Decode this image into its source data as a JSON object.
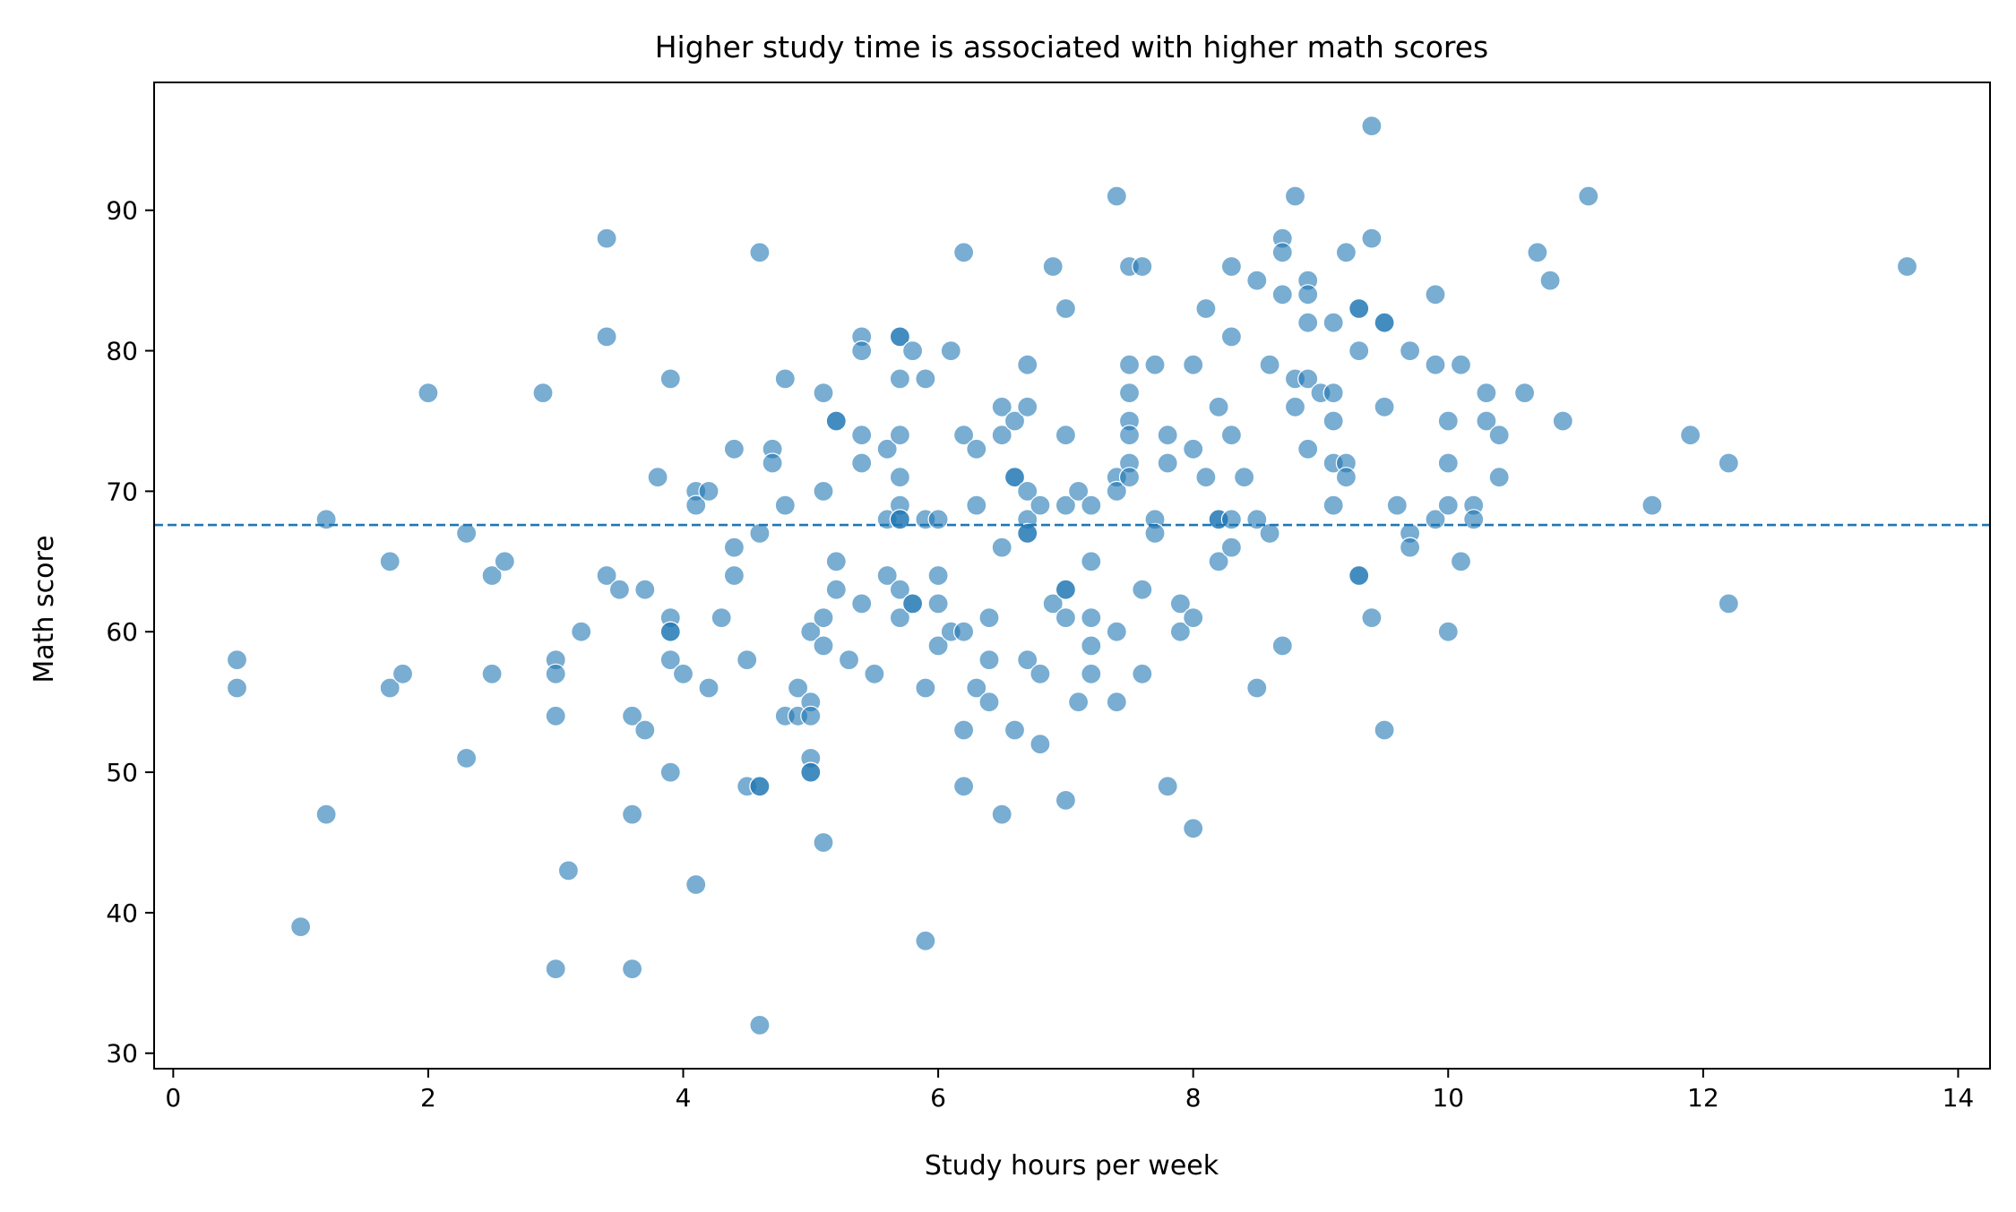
{
  "chart_data": {
    "type": "scatter",
    "title": "Higher study time is associated with higher math scores",
    "xlabel": "Study hours per week",
    "ylabel": "Math score",
    "xlim": [
      -0.15,
      14.25
    ],
    "ylim": [
      28.9,
      99.1
    ],
    "xticks": [
      0,
      2,
      4,
      6,
      8,
      10,
      12,
      14
    ],
    "yticks": [
      30,
      40,
      50,
      60,
      70,
      80,
      90
    ],
    "grid": false,
    "legend": "none",
    "reference_line": {
      "orientation": "horizontal",
      "y": 67.6,
      "style": "dashed"
    },
    "colors": {
      "point": "#1f77b4",
      "line": "#1f77b4"
    },
    "points": [
      [
        0.5,
        58
      ],
      [
        0.5,
        56
      ],
      [
        1.0,
        39
      ],
      [
        1.2,
        68
      ],
      [
        1.2,
        47
      ],
      [
        1.7,
        65
      ],
      [
        1.7,
        56
      ],
      [
        1.8,
        57
      ],
      [
        2.0,
        77
      ],
      [
        2.3,
        67
      ],
      [
        2.3,
        51
      ],
      [
        2.5,
        64
      ],
      [
        2.5,
        57
      ],
      [
        2.6,
        65
      ],
      [
        2.9,
        77
      ],
      [
        3.0,
        58
      ],
      [
        3.0,
        57
      ],
      [
        3.0,
        54
      ],
      [
        3.0,
        36
      ],
      [
        3.1,
        43
      ],
      [
        3.2,
        60
      ],
      [
        3.4,
        88
      ],
      [
        3.4,
        81
      ],
      [
        3.4,
        64
      ],
      [
        3.5,
        63
      ],
      [
        3.6,
        54
      ],
      [
        3.6,
        47
      ],
      [
        3.6,
        36
      ],
      [
        3.7,
        63
      ],
      [
        3.7,
        53
      ],
      [
        3.8,
        71
      ],
      [
        3.9,
        78
      ],
      [
        3.9,
        61
      ],
      [
        3.9,
        60
      ],
      [
        3.9,
        60
      ],
      [
        3.9,
        58
      ],
      [
        3.9,
        50
      ],
      [
        4.0,
        57
      ],
      [
        4.1,
        70
      ],
      [
        4.1,
        69
      ],
      [
        4.1,
        42
      ],
      [
        4.2,
        70
      ],
      [
        4.2,
        56
      ],
      [
        4.3,
        61
      ],
      [
        4.4,
        73
      ],
      [
        4.4,
        66
      ],
      [
        4.4,
        64
      ],
      [
        4.5,
        58
      ],
      [
        4.5,
        49
      ],
      [
        4.6,
        87
      ],
      [
        4.6,
        67
      ],
      [
        4.6,
        49
      ],
      [
        4.6,
        49
      ],
      [
        4.6,
        32
      ],
      [
        4.7,
        73
      ],
      [
        4.7,
        72
      ],
      [
        4.8,
        78
      ],
      [
        4.8,
        69
      ],
      [
        4.8,
        54
      ],
      [
        4.9,
        56
      ],
      [
        4.9,
        54
      ],
      [
        5.0,
        60
      ],
      [
        5.0,
        55
      ],
      [
        5.0,
        54
      ],
      [
        5.0,
        51
      ],
      [
        5.0,
        50
      ],
      [
        5.0,
        50
      ],
      [
        5.1,
        77
      ],
      [
        5.1,
        70
      ],
      [
        5.1,
        61
      ],
      [
        5.1,
        59
      ],
      [
        5.1,
        45
      ],
      [
        5.2,
        75
      ],
      [
        5.2,
        75
      ],
      [
        5.2,
        65
      ],
      [
        5.2,
        63
      ],
      [
        5.3,
        58
      ],
      [
        5.4,
        81
      ],
      [
        5.4,
        80
      ],
      [
        5.4,
        74
      ],
      [
        5.4,
        72
      ],
      [
        5.4,
        62
      ],
      [
        5.5,
        57
      ],
      [
        5.6,
        73
      ],
      [
        5.6,
        68
      ],
      [
        5.6,
        64
      ],
      [
        5.7,
        81
      ],
      [
        5.7,
        81
      ],
      [
        5.7,
        78
      ],
      [
        5.7,
        74
      ],
      [
        5.7,
        71
      ],
      [
        5.7,
        69
      ],
      [
        5.7,
        68
      ],
      [
        5.7,
        68
      ],
      [
        5.7,
        63
      ],
      [
        5.7,
        61
      ],
      [
        5.8,
        80
      ],
      [
        5.8,
        62
      ],
      [
        5.8,
        62
      ],
      [
        5.9,
        78
      ],
      [
        5.9,
        68
      ],
      [
        5.9,
        56
      ],
      [
        5.9,
        38
      ],
      [
        6.0,
        68
      ],
      [
        6.0,
        64
      ],
      [
        6.0,
        62
      ],
      [
        6.0,
        59
      ],
      [
        6.1,
        80
      ],
      [
        6.1,
        60
      ],
      [
        6.2,
        87
      ],
      [
        6.2,
        74
      ],
      [
        6.2,
        60
      ],
      [
        6.2,
        53
      ],
      [
        6.2,
        49
      ],
      [
        6.3,
        73
      ],
      [
        6.3,
        69
      ],
      [
        6.3,
        56
      ],
      [
        6.4,
        61
      ],
      [
        6.4,
        58
      ],
      [
        6.4,
        55
      ],
      [
        6.5,
        76
      ],
      [
        6.5,
        74
      ],
      [
        6.5,
        66
      ],
      [
        6.5,
        47
      ],
      [
        6.6,
        75
      ],
      [
        6.6,
        71
      ],
      [
        6.6,
        71
      ],
      [
        6.6,
        53
      ],
      [
        6.7,
        79
      ],
      [
        6.7,
        76
      ],
      [
        6.7,
        70
      ],
      [
        6.7,
        68
      ],
      [
        6.7,
        67
      ],
      [
        6.7,
        67
      ],
      [
        6.7,
        58
      ],
      [
        6.8,
        69
      ],
      [
        6.8,
        57
      ],
      [
        6.8,
        52
      ],
      [
        6.9,
        86
      ],
      [
        6.9,
        62
      ],
      [
        7.0,
        83
      ],
      [
        7.0,
        74
      ],
      [
        7.0,
        69
      ],
      [
        7.0,
        63
      ],
      [
        7.0,
        63
      ],
      [
        7.0,
        61
      ],
      [
        7.0,
        48
      ],
      [
        7.1,
        70
      ],
      [
        7.1,
        55
      ],
      [
        7.2,
        69
      ],
      [
        7.2,
        65
      ],
      [
        7.2,
        61
      ],
      [
        7.2,
        59
      ],
      [
        7.2,
        57
      ],
      [
        7.4,
        91
      ],
      [
        7.4,
        71
      ],
      [
        7.4,
        70
      ],
      [
        7.4,
        60
      ],
      [
        7.4,
        55
      ],
      [
        7.5,
        86
      ],
      [
        7.5,
        79
      ],
      [
        7.5,
        77
      ],
      [
        7.5,
        75
      ],
      [
        7.5,
        74
      ],
      [
        7.5,
        72
      ],
      [
        7.5,
        71
      ],
      [
        7.6,
        86
      ],
      [
        7.6,
        63
      ],
      [
        7.6,
        57
      ],
      [
        7.7,
        79
      ],
      [
        7.7,
        68
      ],
      [
        7.7,
        67
      ],
      [
        7.8,
        74
      ],
      [
        7.8,
        72
      ],
      [
        7.8,
        49
      ],
      [
        7.9,
        62
      ],
      [
        7.9,
        60
      ],
      [
        8.0,
        79
      ],
      [
        8.0,
        73
      ],
      [
        8.0,
        61
      ],
      [
        8.0,
        46
      ],
      [
        8.1,
        83
      ],
      [
        8.1,
        71
      ],
      [
        8.2,
        76
      ],
      [
        8.2,
        68
      ],
      [
        8.2,
        68
      ],
      [
        8.2,
        65
      ],
      [
        8.3,
        86
      ],
      [
        8.3,
        81
      ],
      [
        8.3,
        74
      ],
      [
        8.3,
        68
      ],
      [
        8.3,
        66
      ],
      [
        8.4,
        71
      ],
      [
        8.5,
        85
      ],
      [
        8.5,
        68
      ],
      [
        8.5,
        56
      ],
      [
        8.6,
        79
      ],
      [
        8.6,
        67
      ],
      [
        8.7,
        88
      ],
      [
        8.7,
        87
      ],
      [
        8.7,
        84
      ],
      [
        8.7,
        59
      ],
      [
        8.8,
        91
      ],
      [
        8.8,
        78
      ],
      [
        8.8,
        76
      ],
      [
        8.9,
        85
      ],
      [
        8.9,
        84
      ],
      [
        8.9,
        82
      ],
      [
        8.9,
        78
      ],
      [
        8.9,
        73
      ],
      [
        9.0,
        77
      ],
      [
        9.1,
        82
      ],
      [
        9.1,
        77
      ],
      [
        9.1,
        75
      ],
      [
        9.1,
        72
      ],
      [
        9.1,
        69
      ],
      [
        9.2,
        87
      ],
      [
        9.2,
        72
      ],
      [
        9.2,
        71
      ],
      [
        9.3,
        83
      ],
      [
        9.3,
        83
      ],
      [
        9.3,
        80
      ],
      [
        9.3,
        64
      ],
      [
        9.3,
        64
      ],
      [
        9.4,
        96
      ],
      [
        9.4,
        88
      ],
      [
        9.4,
        61
      ],
      [
        9.5,
        82
      ],
      [
        9.5,
        82
      ],
      [
        9.5,
        76
      ],
      [
        9.5,
        53
      ],
      [
        9.6,
        69
      ],
      [
        9.7,
        80
      ],
      [
        9.7,
        67
      ],
      [
        9.7,
        66
      ],
      [
        9.9,
        84
      ],
      [
        9.9,
        79
      ],
      [
        9.9,
        68
      ],
      [
        10.0,
        75
      ],
      [
        10.0,
        72
      ],
      [
        10.0,
        69
      ],
      [
        10.0,
        60
      ],
      [
        10.1,
        79
      ],
      [
        10.1,
        65
      ],
      [
        10.2,
        69
      ],
      [
        10.2,
        68
      ],
      [
        10.3,
        77
      ],
      [
        10.3,
        75
      ],
      [
        10.4,
        74
      ],
      [
        10.4,
        71
      ],
      [
        10.6,
        77
      ],
      [
        10.7,
        87
      ],
      [
        10.8,
        85
      ],
      [
        10.9,
        75
      ],
      [
        11.1,
        91
      ],
      [
        11.6,
        69
      ],
      [
        11.9,
        74
      ],
      [
        12.2,
        72
      ],
      [
        12.2,
        62
      ],
      [
        13.6,
        86
      ]
    ]
  }
}
